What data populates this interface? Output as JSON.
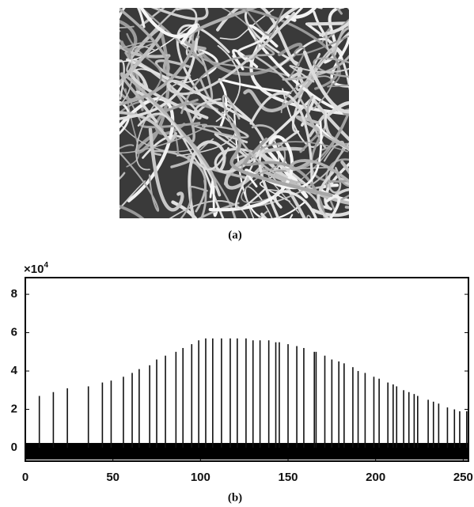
{
  "captions": [
    "(a)",
    "(b)"
  ],
  "chart_data": {
    "type": "bar",
    "yaxis_scale": "×10",
    "yaxis_scale_exponent": "4",
    "x": [
      8,
      16,
      24,
      36,
      44,
      49,
      56,
      61,
      65,
      71,
      75,
      80,
      86,
      90,
      95,
      99,
      103,
      107,
      112,
      117,
      121,
      126,
      130,
      134,
      139,
      143,
      145,
      150,
      155,
      159,
      165,
      166,
      171,
      175,
      179,
      182,
      187,
      190,
      194,
      199,
      202,
      207,
      210,
      212,
      216,
      219,
      222,
      224,
      230,
      233,
      236,
      241,
      245,
      248,
      252
    ],
    "values": [
      2.7,
      2.9,
      3.1,
      3.2,
      3.4,
      3.5,
      3.7,
      3.9,
      4.1,
      4.3,
      4.6,
      4.8,
      5.0,
      5.2,
      5.4,
      5.6,
      5.7,
      5.7,
      5.7,
      5.7,
      5.7,
      5.7,
      5.6,
      5.6,
      5.6,
      5.5,
      5.5,
      5.4,
      5.3,
      5.2,
      5.0,
      5.0,
      4.8,
      4.6,
      4.5,
      4.4,
      4.2,
      4.0,
      3.9,
      3.7,
      3.6,
      3.4,
      3.3,
      3.2,
      3.0,
      2.9,
      2.8,
      2.7,
      2.5,
      2.4,
      2.3,
      2.1,
      2.0,
      1.9,
      1.9
    ],
    "color": "#111111",
    "xlim": [
      0,
      253
    ],
    "xticks": [
      0,
      50,
      100,
      150,
      200,
      250
    ],
    "ylim": [
      -0.7,
      8.87
    ],
    "yticks": [
      0,
      2,
      4,
      6,
      8
    ]
  }
}
